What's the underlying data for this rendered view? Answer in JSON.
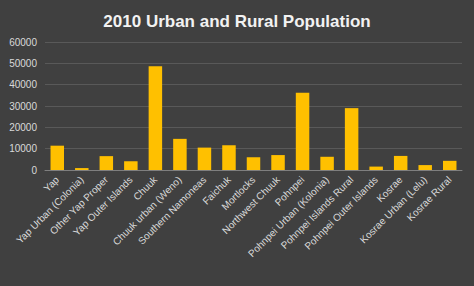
{
  "chart_data": {
    "type": "bar",
    "title": "2010 Urban and Rural Population",
    "categories": [
      "Yap",
      "Yap Urban (Colonia)",
      "Other Yap Proper",
      "Yap Outer Islands",
      "Chuuk",
      "Chuuk urban (Weno)",
      "Southern Namoneas",
      "Faichuk",
      "Mortlocks",
      "Northwest Chuuk",
      "Pohnpei",
      "Pohnpei Urban (Kolonia)",
      "Pohnpei Islands Rural",
      "Pohnpei Outer Islands",
      "Kosrae",
      "Kosrae Urban (Lelu)",
      "Kosrae Rural"
    ],
    "values": [
      11400,
      900,
      6500,
      4100,
      48600,
      14600,
      10500,
      11600,
      6000,
      7000,
      36200,
      6200,
      29000,
      1600,
      6600,
      2300,
      4300
    ],
    "color": "#ffc000",
    "ylim": [
      0,
      60000
    ],
    "yticks": [
      0,
      10000,
      20000,
      30000,
      40000,
      50000,
      60000
    ],
    "grid": true
  }
}
